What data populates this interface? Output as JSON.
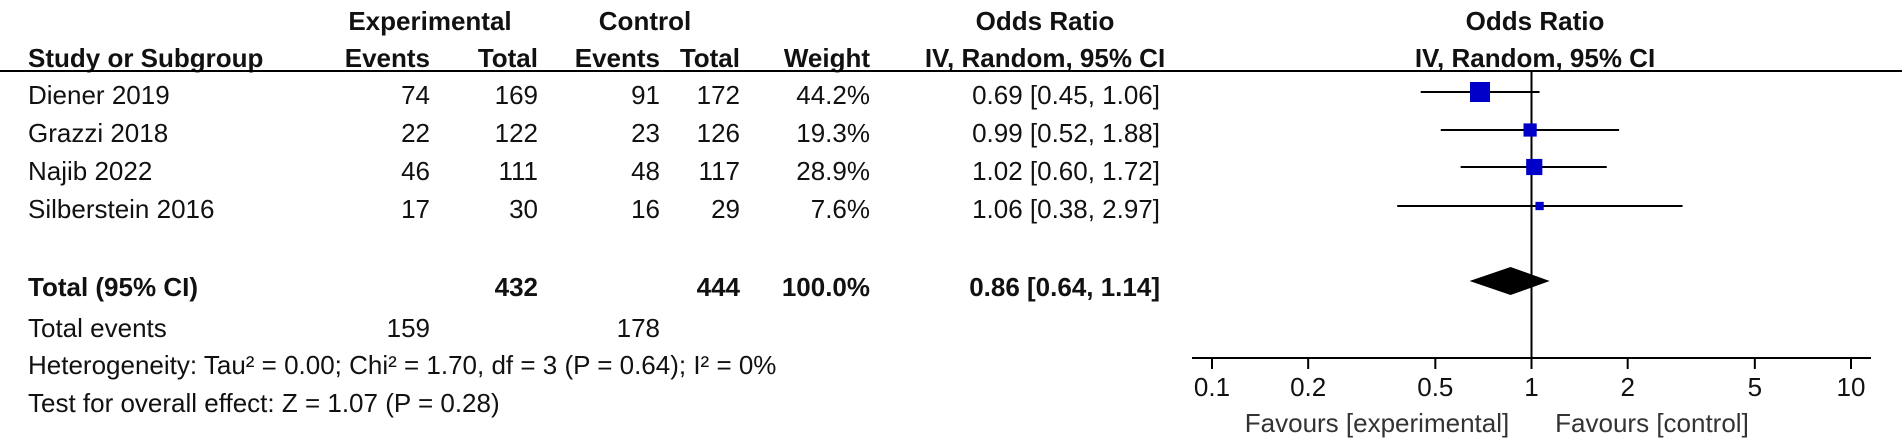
{
  "table": {
    "group_headers": {
      "experimental": "Experimental",
      "control": "Control",
      "or_table": "Odds Ratio",
      "or_plot": "Odds Ratio"
    },
    "col_headers": {
      "study": "Study or Subgroup",
      "exp_events": "Events",
      "exp_total": "Total",
      "ctl_events": "Events",
      "ctl_total": "Total",
      "weight": "Weight",
      "or_method_table": "IV, Random, 95% CI",
      "or_method_plot": "IV, Random, 95% CI"
    },
    "studies": [
      {
        "name": "Diener 2019",
        "exp_events": "74",
        "exp_total": "169",
        "ctl_events": "91",
        "ctl_total": "172",
        "weight": "44.2%",
        "ci_text": "0.69 [0.45, 1.06]"
      },
      {
        "name": "Grazzi 2018",
        "exp_events": "22",
        "exp_total": "122",
        "ctl_events": "23",
        "ctl_total": "126",
        "weight": "19.3%",
        "ci_text": "0.99 [0.52, 1.88]"
      },
      {
        "name": "Najib 2022",
        "exp_events": "46",
        "exp_total": "111",
        "ctl_events": "48",
        "ctl_total": "117",
        "weight": "28.9%",
        "ci_text": "1.02 [0.60, 1.72]"
      },
      {
        "name": "Silberstein 2016",
        "exp_events": "17",
        "exp_total": "30",
        "ctl_events": "16",
        "ctl_total": "29",
        "weight": "7.6%",
        "ci_text": "1.06 [0.38, 2.97]"
      }
    ],
    "total": {
      "label": "Total (95% CI)",
      "exp_total": "432",
      "ctl_total": "444",
      "weight": "100.0%",
      "ci_text": "0.86 [0.64, 1.14]"
    },
    "total_events": {
      "label": "Total events",
      "exp_events": "159",
      "ctl_events": "178"
    },
    "heterogeneity": "Heterogeneity: Tau² = 0.00; Chi² = 1.70, df = 3 (P = 0.64); I² = 0%",
    "overall_effect": "Test for overall effect: Z = 1.07 (P = 0.28)"
  },
  "chart_data": {
    "type": "forest",
    "x_scale": "log",
    "xlim": [
      0.1,
      10
    ],
    "x_ticks": [
      0.1,
      0.2,
      0.5,
      1,
      2,
      5,
      10
    ],
    "x_tick_labels": [
      "0.1",
      "0.2",
      "0.5",
      "1",
      "2",
      "5",
      "10"
    ],
    "null_line": 1,
    "favours_left": "Favours [experimental]",
    "favours_right": "Favours [control]",
    "studies": [
      {
        "or": 0.69,
        "lower": 0.45,
        "upper": 1.06,
        "weight": 44.2
      },
      {
        "or": 0.99,
        "lower": 0.52,
        "upper": 1.88,
        "weight": 19.3
      },
      {
        "or": 1.02,
        "lower": 0.6,
        "upper": 1.72,
        "weight": 28.9
      },
      {
        "or": 1.06,
        "lower": 0.38,
        "upper": 2.97,
        "weight": 7.6
      }
    ],
    "pooled": {
      "or": 0.86,
      "lower": 0.64,
      "upper": 1.14
    },
    "colors": {
      "marker": "#0000c8",
      "line": "#000000",
      "diamond": "#000000"
    }
  }
}
